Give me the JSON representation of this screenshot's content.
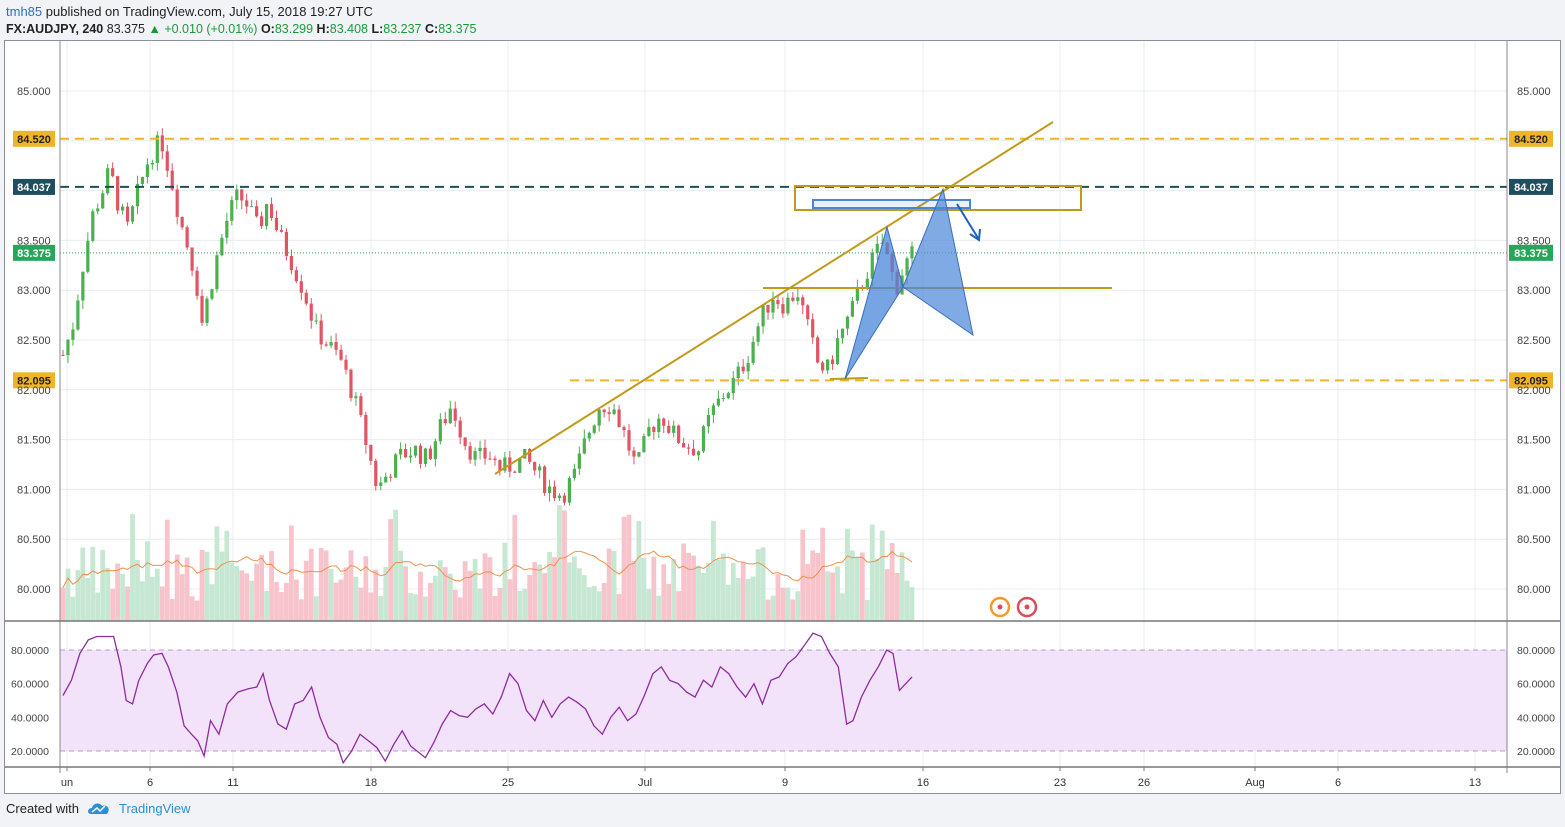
{
  "header": {
    "user": "tmh85",
    "published_text": "published on TradingView.com, July 15, 2018 19:27 UTC",
    "symbol": "FX:AUDJPY, 240",
    "price": "83.375",
    "change_arrow": "▲",
    "change": "+0.010 (+0.01%)",
    "o_label": "O:",
    "o_value": "83.299",
    "h_label": "H:",
    "h_value": "83.408",
    "l_label": "L:",
    "l_value": "83.237",
    "c_label": "C:",
    "c_value": "83.375"
  },
  "footer": {
    "created_with": "Created with",
    "brand": "TradingView",
    "brand_icon": "tradingview-cloud-icon"
  },
  "colors": {
    "up": "#4caf50",
    "down": "#e05563",
    "grid": "#e9ecf0",
    "orange_level": "#f0b429",
    "dark_level": "#1f4e5f",
    "current_price": "#26a65b",
    "trendline": "#c29a1a",
    "pattern": "#4a86d8",
    "rsi_band": "#f2e3fb",
    "rsi_line": "#8e2ba0",
    "volume_ma": "#f0904a"
  },
  "chart_data": [
    {
      "type": "candlestick",
      "symbol": "FX:AUDJPY",
      "interval": "240",
      "y_ticks": [
        "85.000",
        "84.520",
        "84.037",
        "83.500",
        "83.375",
        "83.000",
        "82.500",
        "82.095",
        "82.000",
        "81.500",
        "81.000",
        "80.500",
        "80.000"
      ],
      "ylim": [
        79.68,
        85.35
      ],
      "x_ticks": [
        "un",
        "6",
        "11",
        "18",
        "25",
        "Jul",
        "9",
        "16",
        "23",
        "26",
        "Aug",
        "6",
        "13"
      ],
      "levels": [
        {
          "label": "84.520",
          "value": 84.52,
          "style": "dashed",
          "color": "#f0b429"
        },
        {
          "label": "84.037",
          "value": 84.037,
          "style": "dashed",
          "color": "#1f4e5f"
        },
        {
          "label": "83.375",
          "value": 83.375,
          "style": "dotted",
          "color": "#26a65b"
        },
        {
          "label": "82.095",
          "value": 82.095,
          "style": "dashed",
          "color": "#f0b429"
        }
      ],
      "price_path": [
        [
          0,
          82.35
        ],
        [
          8,
          82.65
        ],
        [
          16,
          83.25
        ],
        [
          24,
          83.75
        ],
        [
          32,
          84.0
        ],
        [
          38,
          84.2
        ],
        [
          44,
          83.9
        ],
        [
          52,
          83.6
        ],
        [
          60,
          83.95
        ],
        [
          70,
          84.35
        ],
        [
          80,
          84.5
        ],
        [
          88,
          84.1
        ],
        [
          95,
          83.7
        ],
        [
          102,
          83.4
        ],
        [
          108,
          83.1
        ],
        [
          112,
          82.65
        ],
        [
          118,
          82.95
        ],
        [
          126,
          83.4
        ],
        [
          134,
          83.75
        ],
        [
          142,
          83.95
        ],
        [
          150,
          83.85
        ],
        [
          158,
          83.6
        ],
        [
          166,
          83.9
        ],
        [
          175,
          83.55
        ],
        [
          185,
          83.3
        ],
        [
          195,
          83.0
        ],
        [
          205,
          82.6
        ],
        [
          215,
          82.45
        ],
        [
          225,
          82.3
        ],
        [
          235,
          81.95
        ],
        [
          245,
          81.5
        ],
        [
          255,
          81.0
        ],
        [
          265,
          81.2
        ],
        [
          275,
          81.35
        ],
        [
          285,
          81.4
        ],
        [
          295,
          81.3
        ],
        [
          305,
          81.6
        ],
        [
          315,
          81.85
        ],
        [
          325,
          81.5
        ],
        [
          335,
          81.3
        ],
        [
          345,
          81.35
        ],
        [
          355,
          81.2
        ],
        [
          365,
          81.25
        ],
        [
          375,
          81.3
        ],
        [
          385,
          81.15
        ],
        [
          395,
          81.0
        ],
        [
          405,
          80.95
        ],
        [
          415,
          81.15
        ],
        [
          425,
          81.55
        ],
        [
          435,
          81.85
        ],
        [
          445,
          81.85
        ],
        [
          455,
          81.55
        ],
        [
          465,
          81.2
        ],
        [
          475,
          81.6
        ],
        [
          485,
          81.75
        ],
        [
          495,
          81.55
        ],
        [
          505,
          81.45
        ],
        [
          515,
          81.4
        ],
        [
          525,
          81.75
        ],
        [
          535,
          81.95
        ],
        [
          545,
          82.1
        ],
        [
          555,
          82.35
        ],
        [
          565,
          82.7
        ],
        [
          575,
          82.95
        ],
        [
          585,
          82.85
        ],
        [
          595,
          83.0
        ],
        [
          605,
          82.55
        ],
        [
          612,
          82.25
        ],
        [
          620,
          82.2
        ],
        [
          628,
          82.5
        ],
        [
          638,
          82.75
        ],
        [
          648,
          83.1
        ],
        [
          658,
          83.35
        ],
        [
          665,
          83.5
        ],
        [
          670,
          83.2
        ],
        [
          676,
          83.05
        ],
        [
          682,
          83.25
        ],
        [
          688,
          83.35
        ]
      ],
      "rsi": {
        "ticks": [
          "80.0000",
          "60.0000",
          "40.0000",
          "20.0000"
        ],
        "ylim": [
          10,
          92
        ],
        "band": [
          20,
          80
        ],
        "path": [
          [
            0,
            53
          ],
          [
            8,
            62
          ],
          [
            16,
            78
          ],
          [
            24,
            86
          ],
          [
            32,
            88
          ],
          [
            40,
            88
          ],
          [
            48,
            88
          ],
          [
            55,
            70
          ],
          [
            60,
            50
          ],
          [
            66,
            48
          ],
          [
            72,
            62
          ],
          [
            80,
            72
          ],
          [
            86,
            77
          ],
          [
            94,
            78
          ],
          [
            100,
            70
          ],
          [
            108,
            55
          ],
          [
            115,
            35
          ],
          [
            122,
            30
          ],
          [
            128,
            26
          ],
          [
            134,
            17
          ],
          [
            140,
            38
          ],
          [
            148,
            30
          ],
          [
            156,
            48
          ],
          [
            166,
            55
          ],
          [
            176,
            57
          ],
          [
            184,
            58
          ],
          [
            190,
            66
          ],
          [
            196,
            50
          ],
          [
            204,
            36
          ],
          [
            212,
            33
          ],
          [
            220,
            48
          ],
          [
            228,
            50
          ],
          [
            236,
            58
          ],
          [
            244,
            40
          ],
          [
            252,
            28
          ],
          [
            260,
            24
          ],
          [
            266,
            13
          ],
          [
            274,
            20
          ],
          [
            282,
            30
          ],
          [
            290,
            26
          ],
          [
            298,
            22
          ],
          [
            306,
            14
          ],
          [
            314,
            24
          ],
          [
            322,
            32
          ],
          [
            330,
            23
          ],
          [
            336,
            20
          ],
          [
            344,
            16
          ],
          [
            352,
            25
          ],
          [
            360,
            36
          ],
          [
            368,
            44
          ],
          [
            376,
            41
          ],
          [
            384,
            40
          ],
          [
            392,
            45
          ],
          [
            400,
            48
          ],
          [
            408,
            42
          ],
          [
            416,
            52
          ],
          [
            424,
            66
          ],
          [
            432,
            60
          ],
          [
            440,
            44
          ],
          [
            448,
            38
          ],
          [
            456,
            50
          ],
          [
            464,
            40
          ],
          [
            472,
            48
          ],
          [
            480,
            52
          ],
          [
            488,
            49
          ],
          [
            496,
            45
          ],
          [
            504,
            35
          ],
          [
            512,
            30
          ],
          [
            520,
            40
          ],
          [
            528,
            46
          ],
          [
            536,
            38
          ],
          [
            544,
            42
          ],
          [
            552,
            53
          ],
          [
            560,
            66
          ],
          [
            568,
            70
          ],
          [
            576,
            62
          ],
          [
            584,
            60
          ],
          [
            592,
            55
          ],
          [
            600,
            52
          ],
          [
            608,
            62
          ],
          [
            616,
            58
          ],
          [
            624,
            70
          ],
          [
            632,
            66
          ],
          [
            640,
            58
          ],
          [
            648,
            52
          ],
          [
            656,
            60
          ],
          [
            664,
            48
          ],
          [
            672,
            62
          ],
          [
            680,
            64
          ],
          [
            688,
            72
          ],
          [
            696,
            76
          ],
          [
            704,
            83
          ],
          [
            712,
            90
          ],
          [
            720,
            88
          ],
          [
            728,
            78
          ],
          [
            736,
            70
          ],
          [
            744,
            36
          ],
          [
            750,
            38
          ],
          [
            758,
            52
          ],
          [
            766,
            62
          ],
          [
            774,
            70
          ],
          [
            782,
            80
          ],
          [
            788,
            78
          ],
          [
            794,
            56
          ],
          [
            800,
            60
          ],
          [
            806,
            64
          ]
        ]
      },
      "trendline_points": [
        [
          84.6,
          494,
          472
        ],
        [
          85.0,
          495,
          1052
        ]
      ],
      "annotations": [
        "fib-circle-icon",
        "fib-circle-icon"
      ]
    }
  ]
}
